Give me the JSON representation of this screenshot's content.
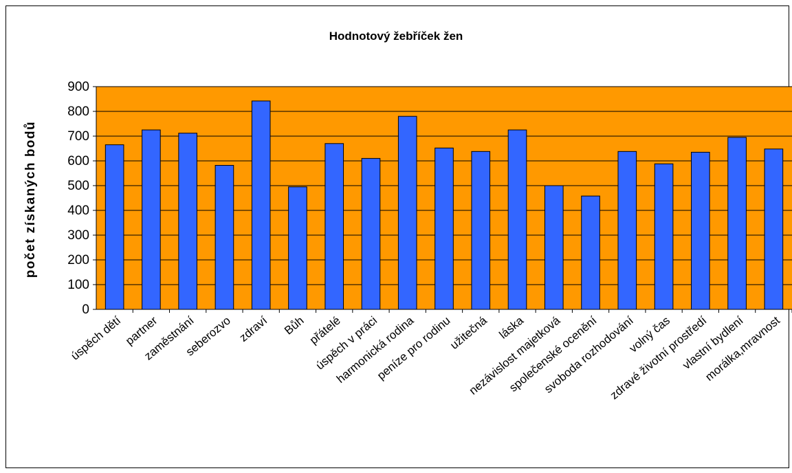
{
  "chart_data": {
    "type": "bar",
    "title": "Hodnotový žebříček žen",
    "y_label": "počet získaných bodů",
    "categories": [
      "úspěch dětí",
      "partner",
      "zaměstnání",
      "seberozvo",
      "zdraví",
      "Bůh",
      "přátelé",
      "úspěch v práci",
      "harmonická rodina",
      "peníze pro rodinu",
      "užitečná",
      "láska",
      "nezávislost majetková",
      "společenské ocenění",
      "svoboda rozhodování",
      "volný čas",
      "zdravé životní prostředí",
      "vlastní bydlení",
      "morálka,mravnost"
    ],
    "values": [
      665,
      725,
      712,
      582,
      842,
      495,
      670,
      610,
      780,
      652,
      638,
      725,
      500,
      458,
      638,
      588,
      635,
      695,
      648
    ],
    "color": "#3366ff",
    "background": "#ff9900",
    "ylim": [
      0,
      900
    ],
    "yticks": [
      0,
      100,
      200,
      300,
      400,
      500,
      600,
      700,
      800,
      900
    ],
    "grid": true
  }
}
